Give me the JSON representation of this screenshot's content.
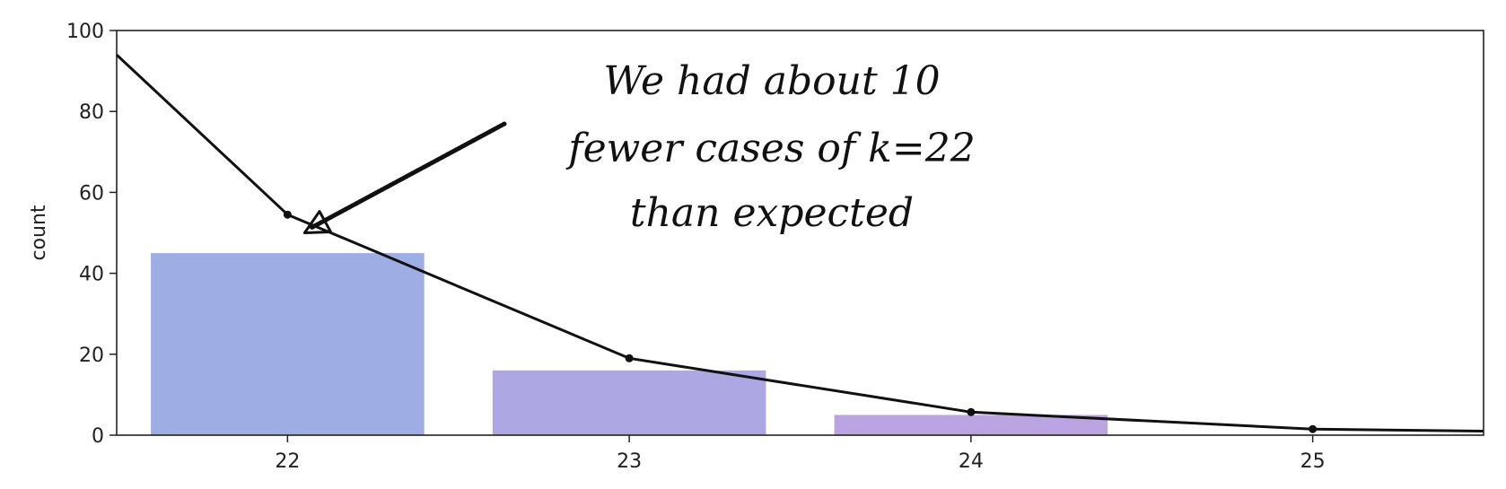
{
  "chart_data": {
    "type": "bar",
    "title": "",
    "xlabel": "",
    "ylabel": "count",
    "categories": [
      "22",
      "23",
      "24",
      "25"
    ],
    "xlim": [
      21.5,
      25.5
    ],
    "ylim": [
      0,
      100
    ],
    "yticks": [
      0,
      20,
      40,
      60,
      80,
      100
    ],
    "grid": false,
    "bars": [
      {
        "x": 22,
        "value": 45,
        "color": "#9eaee4"
      },
      {
        "x": 23,
        "value": 16,
        "color": "#ada7e4"
      },
      {
        "x": 24,
        "value": 5,
        "color": "#bba4e2"
      }
    ],
    "line": {
      "color": "#111111",
      "points": [
        {
          "x": 21.5,
          "y": 94
        },
        {
          "x": 22,
          "y": 54.5,
          "marker": true
        },
        {
          "x": 23,
          "y": 19,
          "marker": true
        },
        {
          "x": 24,
          "y": 5.7,
          "marker": true
        },
        {
          "x": 25,
          "y": 1.5,
          "marker": true
        },
        {
          "x": 25.5,
          "y": 1
        }
      ]
    },
    "annotation": {
      "lines": [
        "We had about 10",
        "fewer cases of k=22",
        "than expected"
      ],
      "arrow_target": {
        "x": 22.05,
        "y": 50
      }
    }
  }
}
